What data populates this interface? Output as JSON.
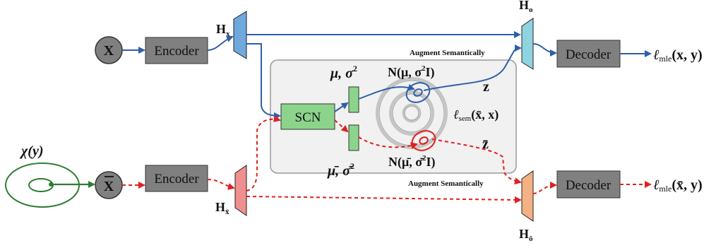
{
  "colors": {
    "blue_flow": "#2e5fa8",
    "red_flow": "#e02020",
    "green_flow": "#2e7d32",
    "gray_box": "#808080",
    "blue_hidden": "#6fa8dc",
    "cyan_hidden": "#8fd3e0",
    "red_hidden": "#f08f8f",
    "orange_hidden": "#f4b183",
    "green_box": "#8cd48c"
  },
  "top": {
    "input": "X",
    "encoder": "Encoder",
    "hidden": "H",
    "hidden_sub": "x",
    "out_hidden": "H",
    "out_hidden_sub": "o",
    "decoder": "Decoder",
    "loss_l": "ℓ",
    "loss_sub": "mle",
    "loss_args": "(x, y)"
  },
  "bottom": {
    "chi": "χ(y)",
    "input": "X",
    "encoder": "Encoder",
    "hidden": "H",
    "hidden_sub": "x̄",
    "out_hidden": "H",
    "out_hidden_sub": "ō",
    "decoder": "Decoder",
    "loss_l": "ℓ",
    "loss_sub": "mle",
    "loss_args": "(x̄, y)"
  },
  "middle": {
    "scn": "SCN",
    "mu_sigma": "μ, σ",
    "mu_sigma_sup": "2",
    "mu_sigma_bar": "μ̄, σ̄",
    "mu_sigma_bar_sup": "2",
    "normal": "N(μ, σ",
    "normal_sup": "2",
    "normal_tail": "I)",
    "normal_bar": "N(μ̄, σ̄",
    "normal_bar_sup": "2",
    "normal_bar_tail": "I)",
    "z": "z",
    "z_bar": "z̄",
    "sem_loss_l": "ℓ",
    "sem_loss_sub": "sem",
    "sem_loss_args": "(x̄, x)",
    "augment_top": "Augment Semantically",
    "augment_bottom": "Augment Semantically"
  }
}
